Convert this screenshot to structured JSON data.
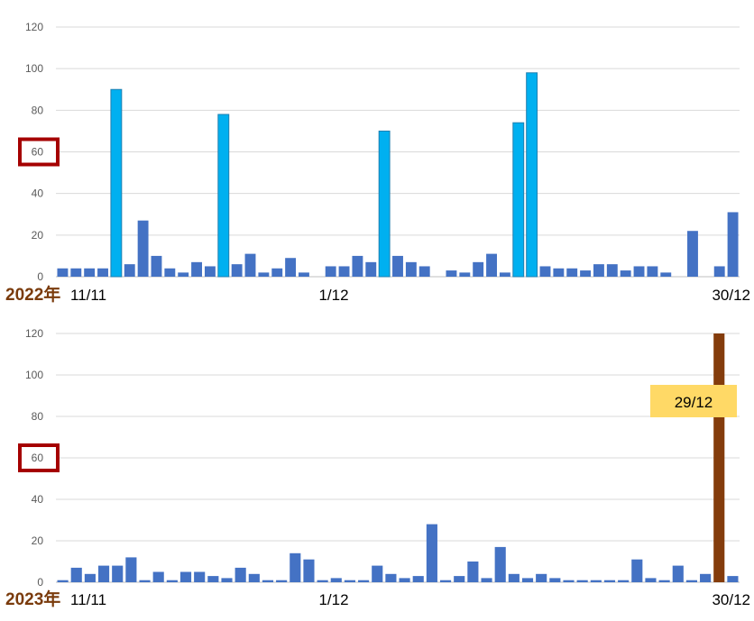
{
  "chart_data": [
    {
      "type": "bar",
      "year_label": "2022年",
      "x_tick_labels": [
        "11/11",
        "1/12",
        "30/12"
      ],
      "ylim": [
        0,
        120
      ],
      "yticks": [
        0,
        20,
        40,
        60,
        80,
        100,
        120
      ],
      "highlighted_tick": 60,
      "grid": true,
      "values": [
        4,
        4,
        4,
        4,
        90,
        6,
        27,
        10,
        4,
        2,
        7,
        5,
        78,
        6,
        11,
        2,
        4,
        9,
        2,
        0,
        5,
        5,
        10,
        7,
        70,
        10,
        7,
        5,
        0,
        3,
        2,
        7,
        11,
        2,
        74,
        98,
        5,
        4,
        4,
        3,
        6,
        6,
        3,
        5,
        5,
        2,
        0,
        22,
        0,
        5,
        31
      ],
      "highlight_indices": [
        4,
        12,
        24,
        34,
        35
      ],
      "bar_color": "#4472c4",
      "highlight_color": "#00b0f0"
    },
    {
      "type": "bar",
      "year_label": "2023年",
      "x_tick_labels": [
        "11/11",
        "1/12",
        "30/12"
      ],
      "ylim": [
        0,
        120
      ],
      "yticks": [
        0,
        20,
        40,
        60,
        80,
        100,
        120
      ],
      "highlighted_tick": 60,
      "grid": true,
      "values": [
        1,
        7,
        4,
        8,
        8,
        12,
        1,
        5,
        1,
        5,
        5,
        3,
        2,
        7,
        4,
        1,
        1,
        14,
        11,
        1,
        2,
        1,
        1,
        8,
        4,
        2,
        3,
        28,
        1,
        3,
        10,
        2,
        17,
        4,
        2,
        4,
        2,
        1,
        1,
        1,
        1,
        1,
        11,
        2,
        1,
        8,
        1,
        4,
        120,
        3
      ],
      "highlight_indices": [
        48
      ],
      "bar_color": "#4472c4",
      "highlight_color": "#843c0c",
      "annotation": {
        "text": "29/12",
        "index": 48,
        "color": "#ffd966"
      }
    }
  ]
}
